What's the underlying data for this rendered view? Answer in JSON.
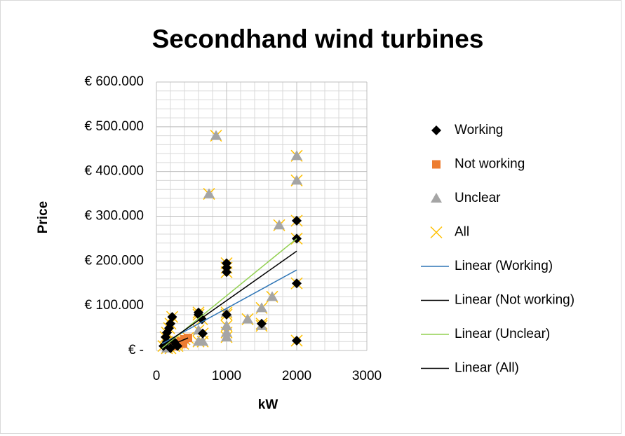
{
  "chart_data": {
    "type": "scatter",
    "title": "Secondhand wind turbines",
    "xlabel": "kW",
    "ylabel": "Price",
    "xlim": [
      0,
      3000
    ],
    "xticks": [
      0,
      1000,
      2000,
      3000
    ],
    "ylim": [
      0,
      600000
    ],
    "yticks": [
      {
        "value": 0,
        "label": "€ -"
      },
      {
        "value": 100000,
        "label": "€ 100.000"
      },
      {
        "value": 200000,
        "label": "€ 200.000"
      },
      {
        "value": 300000,
        "label": "€ 300.000"
      },
      {
        "value": 400000,
        "label": "€ 400.000"
      },
      {
        "value": 500000,
        "label": "€ 500.000"
      },
      {
        "value": 600000,
        "label": "€ 600.000"
      }
    ],
    "grid": true,
    "minor_grid": {
      "x": 200,
      "y": 20000
    },
    "legend": "right",
    "series": [
      {
        "name": "Working",
        "color": "#000000",
        "marker": "diamond",
        "x": [
          2000,
          2000,
          2000,
          2000,
          1000,
          1000,
          1000,
          1000,
          1500,
          600,
          600,
          650,
          660,
          225,
          200,
          180,
          150,
          130,
          150,
          100,
          250,
          300,
          200
        ],
        "values": [
          290000,
          250000,
          150000,
          22000,
          195000,
          185000,
          175000,
          80000,
          60000,
          85000,
          80000,
          70000,
          38000,
          75000,
          60000,
          50000,
          40000,
          30000,
          20000,
          10000,
          20000,
          10000,
          5000
        ]
      },
      {
        "name": "Not working",
        "color": "#ed7d31",
        "marker": "square",
        "x": [
          300,
          350,
          400,
          450,
          250,
          380
        ],
        "values": [
          15000,
          20000,
          25000,
          28000,
          10000,
          15000
        ]
      },
      {
        "name": "Unclear",
        "color": "#a5a5a5",
        "marker": "triangle",
        "x": [
          850,
          750,
          2000,
          2000,
          1750,
          1650,
          1500,
          1500,
          1300,
          1000,
          1000,
          1000,
          1000,
          600,
          660,
          600,
          250,
          150
        ],
        "values": [
          480000,
          350000,
          435000,
          380000,
          280000,
          120000,
          95000,
          55000,
          70000,
          85000,
          55000,
          40000,
          30000,
          20000,
          20000,
          45000,
          10000,
          5000
        ]
      },
      {
        "name": "All",
        "color": "#ffc000",
        "marker": "x",
        "x": [
          2000,
          2000,
          2000,
          2000,
          1000,
          1000,
          1000,
          1000,
          1500,
          600,
          600,
          650,
          660,
          225,
          200,
          180,
          150,
          130,
          150,
          100,
          250,
          300,
          200,
          300,
          350,
          400,
          450,
          250,
          380,
          850,
          750,
          2000,
          2000,
          1750,
          1650,
          1500,
          1500,
          1300,
          1000,
          1000,
          1000,
          1000,
          600,
          660,
          600,
          250,
          150
        ],
        "values": [
          290000,
          250000,
          150000,
          22000,
          195000,
          185000,
          175000,
          80000,
          60000,
          85000,
          80000,
          70000,
          38000,
          75000,
          60000,
          50000,
          40000,
          30000,
          20000,
          10000,
          20000,
          10000,
          5000,
          15000,
          20000,
          25000,
          28000,
          10000,
          15000,
          480000,
          350000,
          435000,
          380000,
          280000,
          120000,
          95000,
          55000,
          70000,
          85000,
          55000,
          40000,
          30000,
          20000,
          20000,
          45000,
          10000,
          5000
        ]
      },
      {
        "name": "Linear (Working)",
        "color": "#2e75b6",
        "marker": "line",
        "x": [
          80,
          2000
        ],
        "values": [
          15000,
          180000
        ]
      },
      {
        "name": "Linear (Not working)",
        "color": "#000000",
        "marker": "line",
        "x": [
          150,
          450
        ],
        "values": [
          8000,
          28000
        ]
      },
      {
        "name": "Linear (Unclear)",
        "color": "#92d050",
        "marker": "line",
        "x": [
          80,
          2000
        ],
        "values": [
          5000,
          250000
        ]
      },
      {
        "name": "Linear (All)",
        "color": "#000000",
        "marker": "line",
        "x": [
          80,
          2000
        ],
        "values": [
          10000,
          222000
        ]
      }
    ]
  }
}
